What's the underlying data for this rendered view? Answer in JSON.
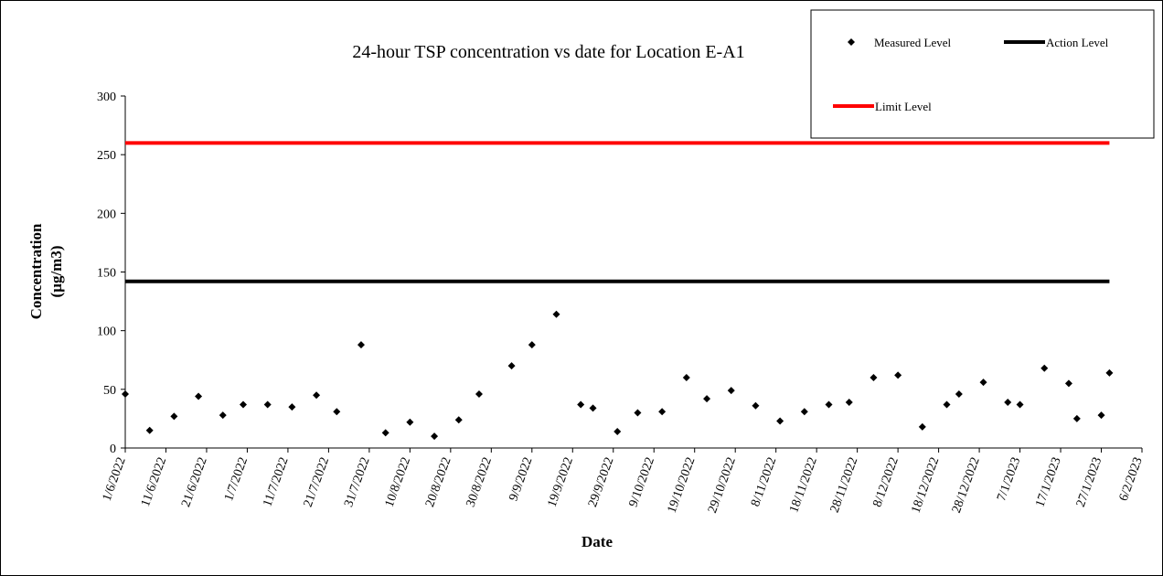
{
  "chart_data": {
    "type": "scatter",
    "title": "24-hour TSP concentration vs date for Location E-A1",
    "xlabel": "Date",
    "ylabel_line1": "Concentration",
    "ylabel_line2": "(µg/m3)",
    "ylim": [
      0,
      300
    ],
    "yticks": [
      0,
      50,
      100,
      150,
      200,
      250,
      300
    ],
    "xlim": [
      "2022-06-01",
      "2023-02-06"
    ],
    "xtick_dates": [
      "2022-06-01",
      "2022-06-11",
      "2022-06-21",
      "2022-07-01",
      "2022-07-11",
      "2022-07-21",
      "2022-07-31",
      "2022-08-10",
      "2022-08-20",
      "2022-08-30",
      "2022-09-09",
      "2022-09-19",
      "2022-09-29",
      "2022-10-09",
      "2022-10-19",
      "2022-10-29",
      "2022-11-08",
      "2022-11-18",
      "2022-11-28",
      "2022-12-08",
      "2022-12-18",
      "2022-12-28",
      "2023-01-07",
      "2023-01-17",
      "2023-01-27",
      "2023-02-06"
    ],
    "xtick_labels": [
      "1/6/2022",
      "11/6/2022",
      "21/6/2022",
      "1/7/2022",
      "11/7/2022",
      "21/7/2022",
      "31/7/2022",
      "10/8/2022",
      "20/8/2022",
      "30/8/2022",
      "9/9/2022",
      "19/9/2022",
      "29/9/2022",
      "9/10/2022",
      "19/10/2022",
      "29/10/2022",
      "8/11/2022",
      "18/11/2022",
      "28/11/2022",
      "8/12/2022",
      "18/12/2022",
      "28/12/2022",
      "7/1/2023",
      "17/1/2023",
      "27/1/2023",
      "6/2/2023"
    ],
    "measured": {
      "name": "Measured Level",
      "color": "#000000",
      "points": [
        {
          "x": "2022-06-01",
          "y": 46
        },
        {
          "x": "2022-06-07",
          "y": 15
        },
        {
          "x": "2022-06-13",
          "y": 27
        },
        {
          "x": "2022-06-19",
          "y": 44
        },
        {
          "x": "2022-06-25",
          "y": 28
        },
        {
          "x": "2022-06-30",
          "y": 37
        },
        {
          "x": "2022-07-06",
          "y": 37
        },
        {
          "x": "2022-07-12",
          "y": 35
        },
        {
          "x": "2022-07-18",
          "y": 45
        },
        {
          "x": "2022-07-23",
          "y": 31
        },
        {
          "x": "2022-07-29",
          "y": 88
        },
        {
          "x": "2022-08-04",
          "y": 13
        },
        {
          "x": "2022-08-10",
          "y": 22
        },
        {
          "x": "2022-08-16",
          "y": 10
        },
        {
          "x": "2022-08-22",
          "y": 24
        },
        {
          "x": "2022-08-27",
          "y": 46
        },
        {
          "x": "2022-09-04",
          "y": 70
        },
        {
          "x": "2022-09-09",
          "y": 88
        },
        {
          "x": "2022-09-15",
          "y": 114
        },
        {
          "x": "2022-09-21",
          "y": 37
        },
        {
          "x": "2022-09-24",
          "y": 34
        },
        {
          "x": "2022-09-30",
          "y": 14
        },
        {
          "x": "2022-10-05",
          "y": 30
        },
        {
          "x": "2022-10-11",
          "y": 31
        },
        {
          "x": "2022-10-17",
          "y": 60
        },
        {
          "x": "2022-10-22",
          "y": 42
        },
        {
          "x": "2022-10-28",
          "y": 49
        },
        {
          "x": "2022-11-03",
          "y": 36
        },
        {
          "x": "2022-11-09",
          "y": 23
        },
        {
          "x": "2022-11-15",
          "y": 31
        },
        {
          "x": "2022-11-21",
          "y": 37
        },
        {
          "x": "2022-11-26",
          "y": 39
        },
        {
          "x": "2022-12-02",
          "y": 60
        },
        {
          "x": "2022-12-08",
          "y": 62
        },
        {
          "x": "2022-12-14",
          "y": 18
        },
        {
          "x": "2022-12-20",
          "y": 37
        },
        {
          "x": "2022-12-23",
          "y": 46
        },
        {
          "x": "2022-12-29",
          "y": 56
        },
        {
          "x": "2023-01-04",
          "y": 39
        },
        {
          "x": "2023-01-07",
          "y": 37
        },
        {
          "x": "2023-01-13",
          "y": 68
        },
        {
          "x": "2023-01-19",
          "y": 55
        },
        {
          "x": "2023-01-21",
          "y": 25
        },
        {
          "x": "2023-01-27",
          "y": 28
        },
        {
          "x": "2023-01-29",
          "y": 64
        }
      ]
    },
    "action_level": {
      "name": "Action Level",
      "value": 142,
      "color": "#000000",
      "x_start": "2022-06-01",
      "x_end": "2023-01-29"
    },
    "limit_level": {
      "name": "Limit Level",
      "value": 260,
      "color": "#ff0000",
      "x_start": "2022-06-01",
      "x_end": "2023-01-29"
    },
    "legend_position": "top-right",
    "grid": false
  }
}
